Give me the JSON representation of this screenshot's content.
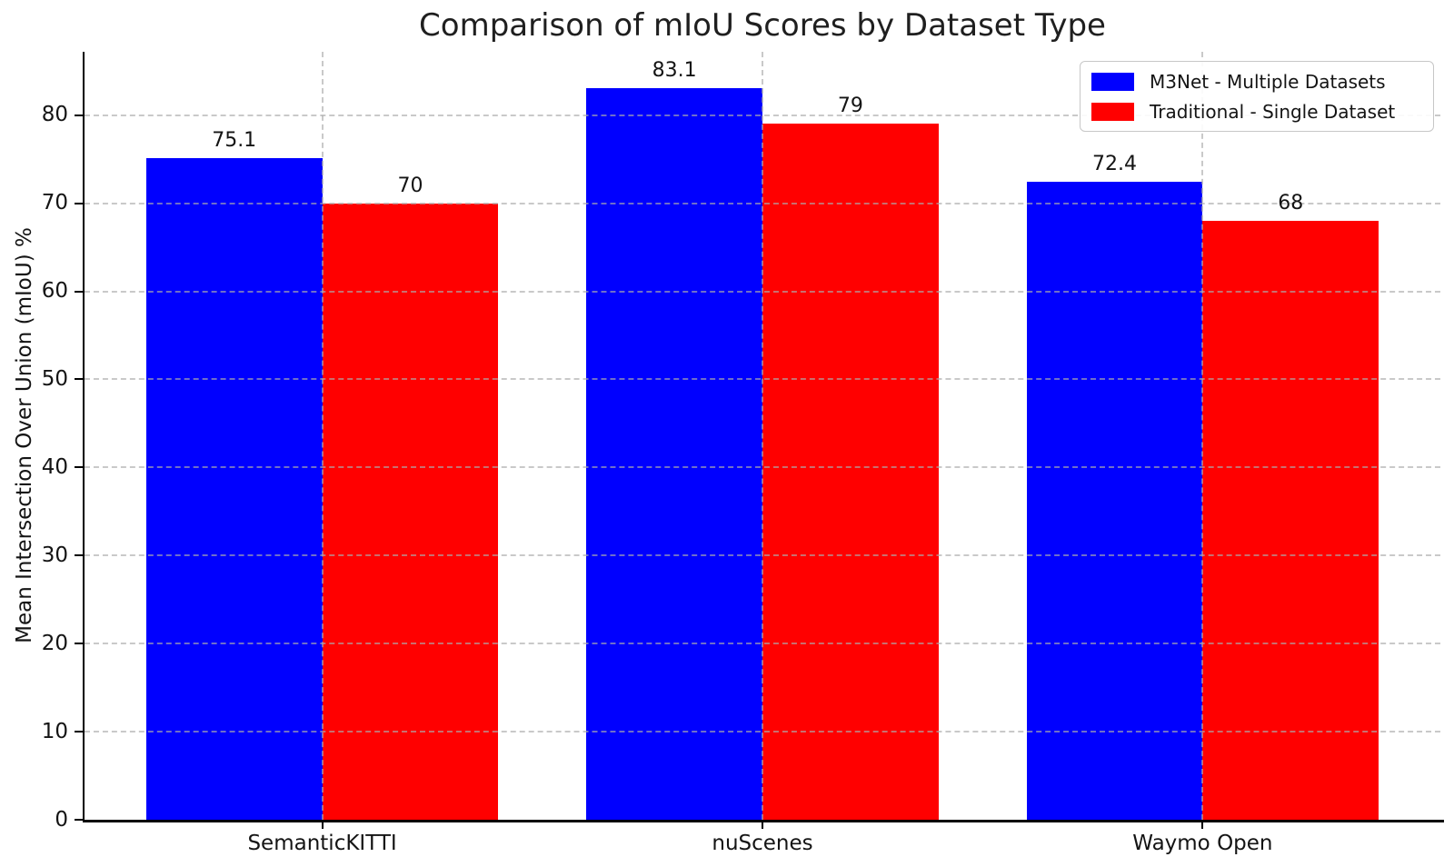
{
  "chart_data": {
    "type": "bar",
    "title": "Comparison of mIoU Scores by Dataset Type",
    "xlabel": "",
    "ylabel": "Mean Intersection Over Union (mIoU) %",
    "categories": [
      "SemanticKITTI",
      "nuScenes",
      "Waymo Open"
    ],
    "series": [
      {
        "name": "M3Net - Multiple Datasets",
        "color": "#0000ff",
        "values": [
          75.1,
          83.1,
          72.4
        ],
        "value_labels": [
          "75.1",
          "83.1",
          "72.4"
        ]
      },
      {
        "name": "Traditional - Single Dataset",
        "color": "#ff0000",
        "values": [
          70,
          79,
          68
        ],
        "value_labels": [
          "70",
          "79",
          "68"
        ]
      }
    ],
    "yticks": [
      0,
      10,
      20,
      30,
      40,
      50,
      60,
      70,
      80
    ],
    "ylim": [
      0,
      87.2
    ],
    "xlim": [
      -0.54,
      2.54
    ],
    "bar_width": 0.4,
    "grid": {
      "visible": true,
      "style": "dashed",
      "color": "#cbcbcb",
      "axes": "both"
    },
    "legend_position": "upper right",
    "background_color": "#ffffff",
    "text_color": "#141414"
  }
}
